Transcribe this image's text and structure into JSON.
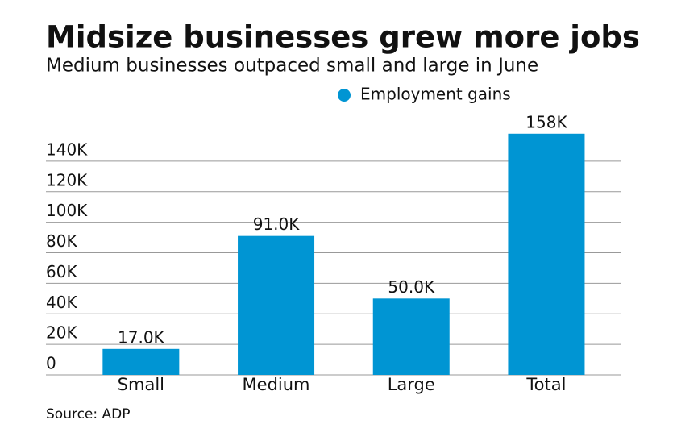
{
  "chart_data": {
    "type": "bar",
    "title": "Midsize businesses grew more jobs",
    "subtitle": "Medium businesses outpaced small and large in June",
    "source": "Source: ADP",
    "categories": [
      "Small",
      "Medium",
      "Large",
      "Total"
    ],
    "series": [
      {
        "name": "Employment gains",
        "color": "#0095d3",
        "values": [
          17000,
          91000,
          50000,
          158000
        ],
        "value_labels": [
          "17.0K",
          "91.0K",
          "50.0K",
          "158K"
        ]
      }
    ],
    "ylim": [
      0,
      160000
    ],
    "yticks": [
      0,
      {
        "value": 20000,
        "label": "20K"
      },
      {
        "value": 40000,
        "label": "40K"
      },
      {
        "value": 60000,
        "label": "60K"
      },
      {
        "value": 80000,
        "label": "80K"
      },
      {
        "value": 100000,
        "label": "100K"
      },
      {
        "value": 120000,
        "label": "120K"
      },
      {
        "value": 140000,
        "label": "140K"
      }
    ],
    "grid": true
  }
}
